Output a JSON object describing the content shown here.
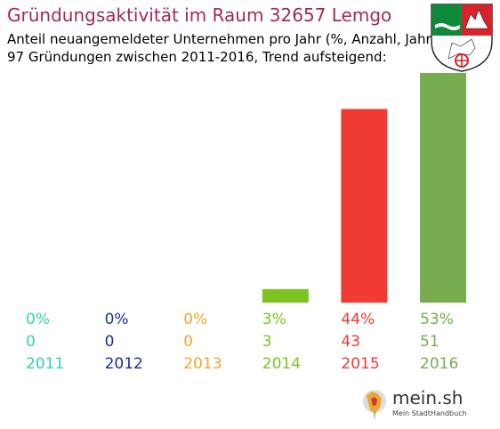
{
  "header": {
    "title": "Gründungsaktivität im Raum 32657 Lemgo",
    "subtitle_line1": "Anteil neuangemeldeter Unternehmen pro Jahr (%, Anzahl, Jahr)",
    "subtitle_line2": "97 Gründungen zwischen 2011-2016, Trend aufsteigend:"
  },
  "crest": {
    "icon": "nrw-coat-of-arms-icon"
  },
  "chart_data": {
    "type": "bar",
    "title": "Gründungsaktivität im Raum 32657 Lemgo",
    "categories": [
      "2011",
      "2012",
      "2013",
      "2014",
      "2015",
      "2016"
    ],
    "series": [
      {
        "values": [
          0,
          0,
          0,
          3,
          43,
          51
        ]
      }
    ],
    "percent_labels": [
      "0%",
      "0%",
      "0%",
      "3%",
      "44%",
      "53%"
    ],
    "count_labels": [
      "0",
      "0",
      "0",
      "3",
      "43",
      "51"
    ],
    "colors": [
      "#2ed3b3",
      "#1c2c9c",
      "#f3a52e",
      "#7dc421",
      "#ef3b33",
      "#78ad4f"
    ],
    "ymax": 51,
    "grid": false,
    "legend": "none"
  },
  "logo": {
    "name": "mein.sh",
    "tagline": "Mein StadtHandbuch",
    "icon": "map-pin-icon"
  }
}
